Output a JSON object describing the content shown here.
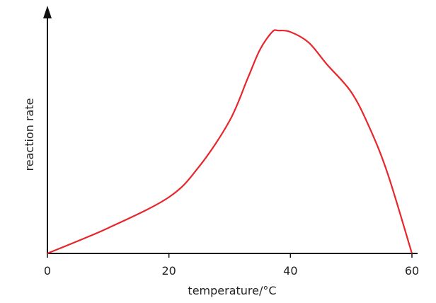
{
  "chart_data": {
    "type": "line",
    "x_label": "temperature/°C",
    "y_label": "reaction rate",
    "series": [
      {
        "color": "#e8262b",
        "x": [
          0,
          10,
          20,
          25,
          30,
          33,
          35,
          37,
          38,
          40,
          43,
          46,
          50,
          53,
          56,
          60
        ],
        "values": [
          0,
          11.3,
          25,
          38.7,
          59,
          78,
          90.6,
          98.4,
          99,
          98.4,
          93.7,
          84,
          71.7,
          56,
          35.5,
          0
        ]
      }
    ],
    "xlim": [
      0,
      60
    ],
    "xticks": [
      0,
      20,
      40,
      60
    ],
    "ylim": [
      0,
      100
    ]
  }
}
